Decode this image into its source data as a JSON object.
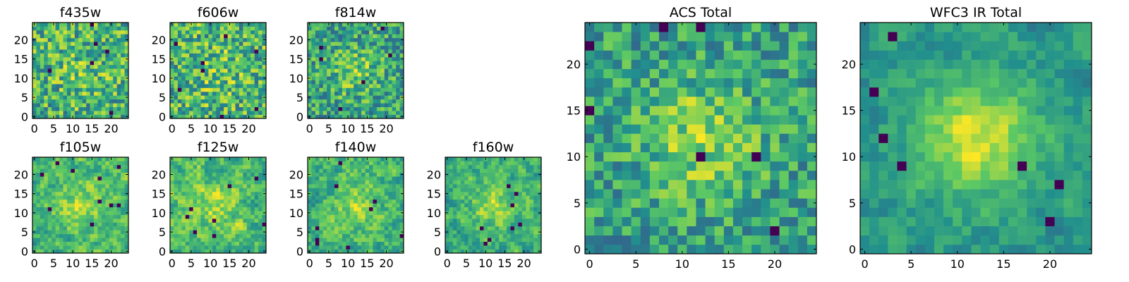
{
  "figure": {
    "background": "#ffffff",
    "colormap": "viridis",
    "colormap_stops": [
      "#440154",
      "#3b528b",
      "#21908d",
      "#5dc963",
      "#fde725"
    ]
  },
  "chart_data": [
    {
      "type": "heatmap",
      "title": "f435w",
      "grid_size": 25,
      "xlim": [
        0,
        24
      ],
      "ylim": [
        0,
        24
      ],
      "xticks": [
        0,
        5,
        10,
        15,
        20
      ],
      "yticks": [
        0,
        5,
        10,
        15,
        20
      ],
      "seed": 11,
      "center_strength": 0.15,
      "noise": 1.0,
      "smooth": 0,
      "dark_spots": 6
    },
    {
      "type": "heatmap",
      "title": "f606w",
      "grid_size": 25,
      "xlim": [
        0,
        24
      ],
      "ylim": [
        0,
        24
      ],
      "xticks": [
        0,
        5,
        10,
        15,
        20
      ],
      "yticks": [
        0,
        5,
        10,
        15,
        20
      ],
      "seed": 23,
      "center_strength": 0.15,
      "noise": 1.0,
      "smooth": 0,
      "dark_spots": 8
    },
    {
      "type": "heatmap",
      "title": "f814w",
      "grid_size": 25,
      "xlim": [
        0,
        24
      ],
      "ylim": [
        0,
        24
      ],
      "xticks": [
        0,
        5,
        10,
        15,
        20
      ],
      "yticks": [
        0,
        5,
        10,
        15,
        20
      ],
      "seed": 37,
      "center_strength": 0.35,
      "noise": 1.0,
      "smooth": 0,
      "dark_spots": 6
    },
    {
      "type": "heatmap",
      "title": "f105w",
      "grid_size": 25,
      "xlim": [
        0,
        24
      ],
      "ylim": [
        0,
        24
      ],
      "xticks": [
        0,
        5,
        10,
        15,
        20
      ],
      "yticks": [
        0,
        5,
        10,
        15,
        20
      ],
      "seed": 41,
      "center_strength": 0.35,
      "noise": 1.0,
      "smooth": 1,
      "dark_spots": 10
    },
    {
      "type": "heatmap",
      "title": "f125w",
      "grid_size": 25,
      "xlim": [
        0,
        24
      ],
      "ylim": [
        0,
        24
      ],
      "xticks": [
        0,
        5,
        10,
        15,
        20
      ],
      "yticks": [
        0,
        5,
        10,
        15,
        20
      ],
      "seed": 53,
      "center_strength": 0.25,
      "noise": 1.0,
      "smooth": 1,
      "dark_spots": 8
    },
    {
      "type": "heatmap",
      "title": "f140w",
      "grid_size": 25,
      "xlim": [
        0,
        24
      ],
      "ylim": [
        0,
        24
      ],
      "xticks": [
        0,
        5,
        10,
        15,
        20
      ],
      "yticks": [
        0,
        5,
        10,
        15,
        20
      ],
      "seed": 67,
      "center_strength": 0.3,
      "noise": 1.0,
      "smooth": 1,
      "dark_spots": 9
    },
    {
      "type": "heatmap",
      "title": "f160w",
      "grid_size": 25,
      "xlim": [
        0,
        24
      ],
      "ylim": [
        0,
        24
      ],
      "xticks": [
        0,
        5,
        10,
        15,
        20
      ],
      "yticks": [
        0,
        5,
        10,
        15,
        20
      ],
      "seed": 79,
      "center_strength": 0.4,
      "noise": 1.0,
      "smooth": 1,
      "dark_spots": 8
    },
    {
      "type": "heatmap",
      "title": "ACS Total",
      "grid_size": 25,
      "xlim": [
        0,
        24
      ],
      "ylim": [
        0,
        24
      ],
      "xticks": [
        0,
        5,
        10,
        15,
        20
      ],
      "yticks": [
        0,
        5,
        10,
        15,
        20
      ],
      "seed": 97,
      "center_strength": 0.45,
      "noise": 0.8,
      "smooth": 0,
      "dark_spots": 7
    },
    {
      "type": "heatmap",
      "title": "WFC3 IR Total",
      "grid_size": 25,
      "xlim": [
        0,
        24
      ],
      "ylim": [
        0,
        24
      ],
      "xticks": [
        0,
        5,
        10,
        15,
        20
      ],
      "yticks": [
        0,
        5,
        10,
        15,
        20
      ],
      "seed": 113,
      "center_strength": 0.7,
      "noise": 0.7,
      "smooth": 1,
      "dark_spots": 8
    }
  ]
}
